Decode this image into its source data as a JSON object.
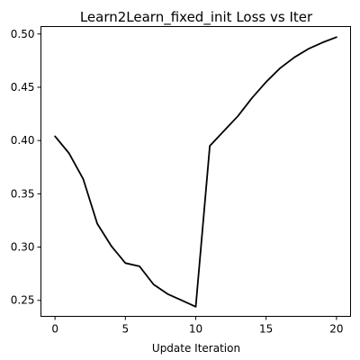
{
  "chart_data": {
    "type": "line",
    "title": "Learn2Learn_fixed_init Loss vs Iter",
    "xlabel": "Update Iteration",
    "ylabel": "",
    "xlim": [
      -1,
      21
    ],
    "ylim": [
      0.235,
      0.507
    ],
    "xticks": [
      0,
      5,
      10,
      15,
      20
    ],
    "xtick_labels": [
      "0",
      "5",
      "10",
      "15",
      "20"
    ],
    "yticks": [
      0.25,
      0.3,
      0.35,
      0.4,
      0.45,
      0.5
    ],
    "ytick_labels": [
      "0.25",
      "0.30",
      "0.35",
      "0.40",
      "0.45",
      "0.50"
    ],
    "grid": false,
    "series": [
      {
        "color": "#000000",
        "x": [
          0,
          1,
          2,
          3,
          4,
          5,
          6,
          7,
          8,
          9,
          10,
          11,
          12,
          13,
          14,
          15,
          16,
          17,
          18,
          19,
          20
        ],
        "y": [
          0.404,
          0.388,
          0.364,
          0.322,
          0.301,
          0.285,
          0.282,
          0.265,
          0.256,
          0.25,
          0.244,
          0.395,
          0.409,
          0.423,
          0.44,
          0.455,
          0.468,
          0.478,
          0.486,
          0.492,
          0.497
        ]
      }
    ]
  }
}
